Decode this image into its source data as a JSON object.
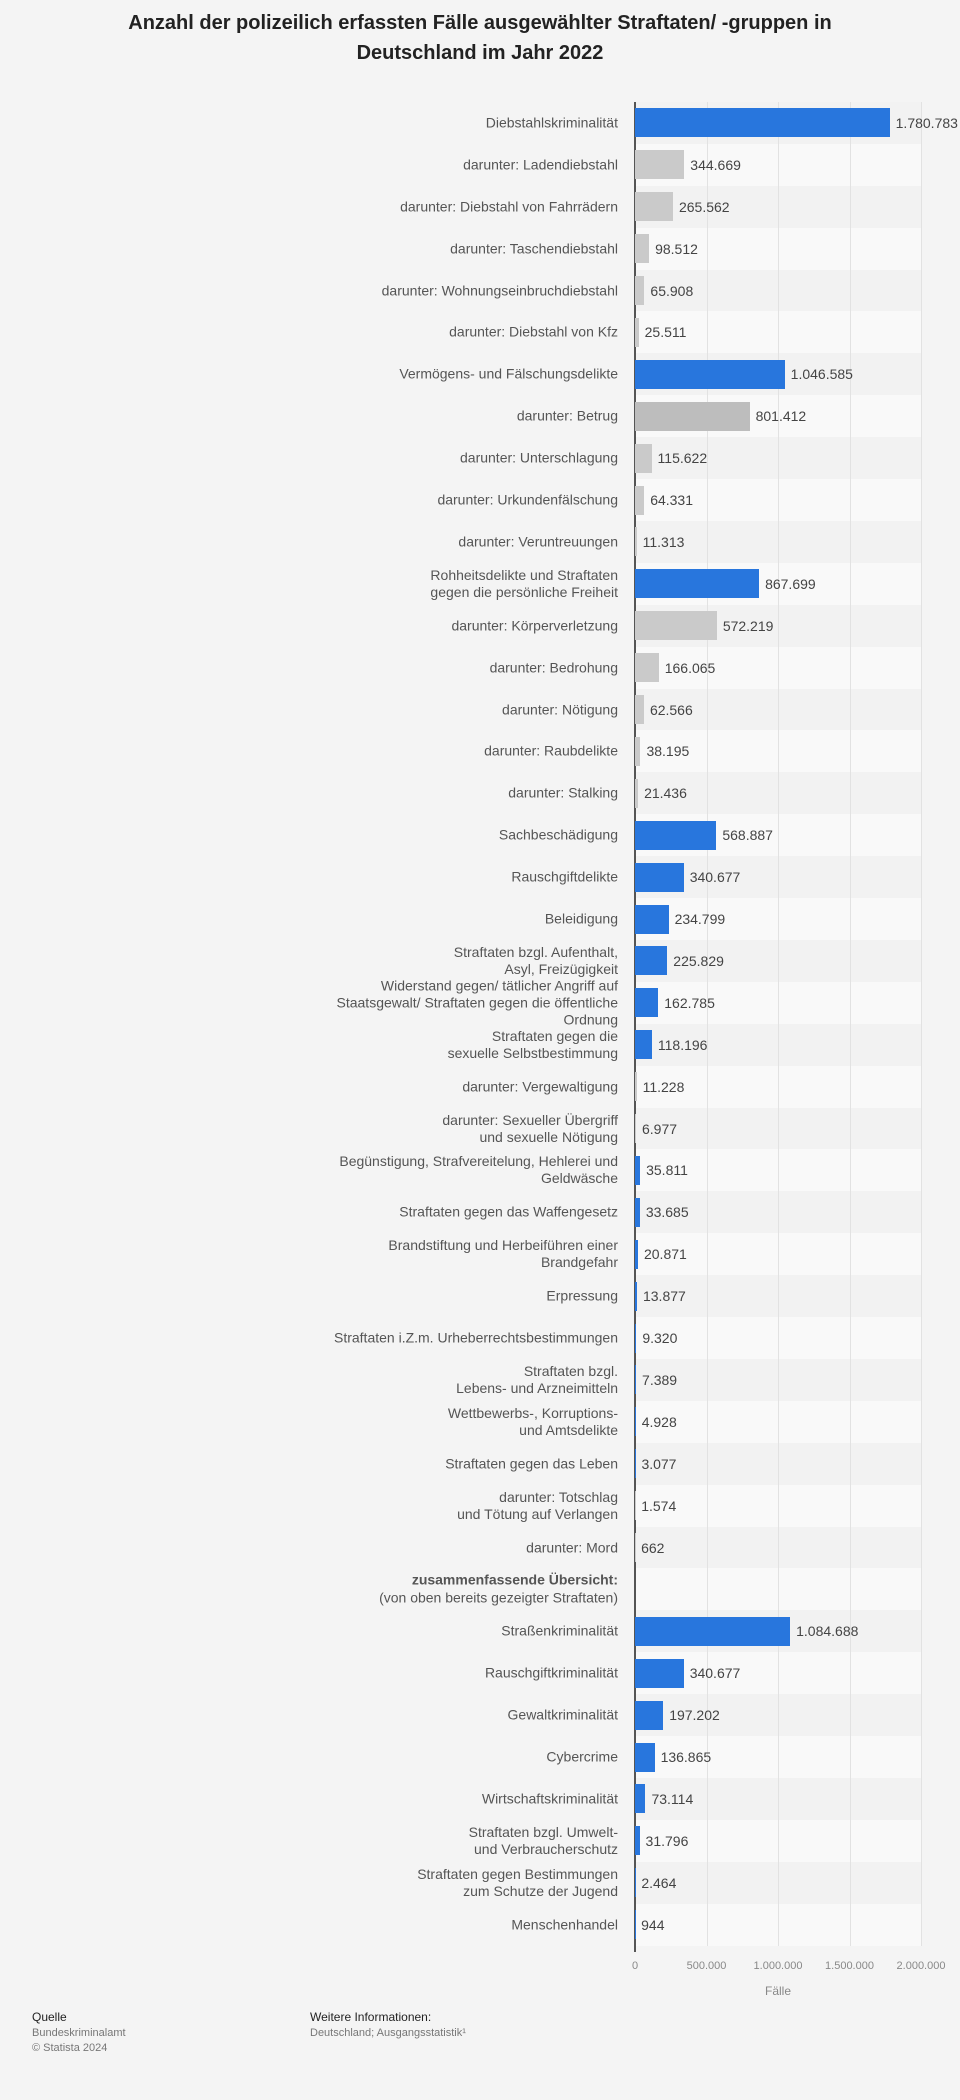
{
  "chart_data": {
    "type": "hbar",
    "title": "Anzahl der polizeilich erfassten Fälle ausgewählter Straftaten/ -gruppen in Deutschland im Jahr 2022",
    "x_label": "Fälle",
    "categories": [
      "Diebstahlskriminalität",
      "darunter: Ladendiebstahl",
      "darunter: Diebstahl von Fahrrädern",
      "darunter: Taschendiebstahl",
      "darunter: Wohnungseinbruchdiebstahl",
      "darunter: Diebstahl von Kfz",
      "Vermögens- und Fälschungsdelikte",
      "darunter: Betrug",
      "darunter: Unterschlagung",
      "darunter: Urkundenfälschung",
      "darunter: Veruntreuungen",
      "Rohheitsdelikte und Straftaten\ngegen die persönliche Freiheit",
      "darunter: Körperverletzung",
      "darunter: Bedrohung",
      "darunter: Nötigung",
      "darunter: Raubdelikte",
      "darunter: Stalking",
      "Sachbeschädigung",
      "Rauschgiftdelikte",
      "Beleidigung",
      "Straftaten bzgl. Aufenthalt,\nAsyl, Freizügigkeit",
      "Widerstand gegen/ tätlicher Angriff auf\nStaatsgewalt/ Straftaten gegen die öffentliche\nOrdnung",
      "Straftaten gegen die\nsexuelle Selbstbestimmung",
      "darunter: Vergewaltigung",
      "darunter: Sexueller Übergriff\nund sexuelle Nötigung",
      "Begünstigung, Strafvereitelung, Hehlerei und\nGeldwäsche",
      "Straftaten gegen das Waffengesetz",
      "Brandstiftung und Herbeiführen einer\nBrandgefahr",
      "Erpressung",
      "Straftaten i.Z.m. Urheberrechtsbestimmungen",
      "Straftaten bzgl.\nLebens- und Arzneimitteln",
      "Wettbewerbs-, Korruptions-\nund Amtsdelikte",
      "Straftaten gegen das Leben",
      "darunter: Totschlag\nund Tötung auf Verlangen",
      "darunter: Mord",
      null,
      "Straßenkriminalität",
      "Rauschgiftkriminalität",
      "Gewaltkriminalität",
      "Cybercrime",
      "Wirtschaftskriminalität",
      "Straftaten bzgl. Umwelt-\nund Verbraucherschutz",
      "Straftaten gegen Bestimmungen\nzum Schutze der Jugend",
      "Menschenhandel"
    ],
    "values": [
      1780783,
      344669,
      265562,
      98512,
      65908,
      25511,
      1046585,
      801412,
      115622,
      64331,
      11313,
      867699,
      572219,
      166065,
      62566,
      38195,
      21436,
      568887,
      340677,
      234799,
      225829,
      162785,
      118196,
      11228,
      6977,
      35811,
      33685,
      20871,
      13877,
      9320,
      7389,
      4928,
      3077,
      1574,
      662,
      null,
      1084688,
      340677,
      197202,
      136865,
      73114,
      31796,
      2464,
      944
    ],
    "value_labels": [
      "1.780.783",
      "344.669",
      "265.562",
      "98.512",
      "65.908",
      "25.511",
      "1.046.585",
      "801.412",
      "115.622",
      "64.331",
      "11.313",
      "867.699",
      "572.219",
      "166.065",
      "62.566",
      "38.195",
      "21.436",
      "568.887",
      "340.677",
      "234.799",
      "225.829",
      "162.785",
      "118.196",
      "11.228",
      "6.977",
      "35.811",
      "33.685",
      "20.871",
      "13.877",
      "9.320",
      "7.389",
      "4.928",
      "3.077",
      "1.574",
      "662",
      null,
      "1.084.688",
      "340.677",
      "197.202",
      "136.865",
      "73.114",
      "31.796",
      "2.464",
      "944"
    ],
    "colors": [
      "#2876dd",
      "#cacaca",
      "#cacaca",
      "#cacaca",
      "#cacaca",
      "#cacaca",
      "#2876dd",
      "#bdbdbd",
      "#cacaca",
      "#cacaca",
      "#cacaca",
      "#2876dd",
      "#cacaca",
      "#cacaca",
      "#cacaca",
      "#cacaca",
      "#cacaca",
      "#2876dd",
      "#2876dd",
      "#2876dd",
      "#2876dd",
      "#2876dd",
      "#2876dd",
      "#cacaca",
      "#cacaca",
      "#2876dd",
      "#2876dd",
      "#2876dd",
      "#2876dd",
      "#2876dd",
      "#2876dd",
      "#2876dd",
      "#2876dd",
      "#cacaca",
      "#cacaca",
      null,
      "#2876dd",
      "#2876dd",
      "#2876dd",
      "#2876dd",
      "#2876dd",
      "#2876dd",
      "#2876dd",
      "#2876dd"
    ],
    "section": {
      "title": "zusammenfassende Übersicht:",
      "note": "(von oben bereits gezeigter Straftaten)",
      "row": 35
    },
    "xlim": [
      0,
      2000000
    ],
    "xticks": [
      0,
      {
        "value": 500000,
        "label": "500.000"
      },
      {
        "value": 1000000,
        "label": "1.000.000"
      },
      {
        "value": 1500000,
        "label": "1.500.000"
      },
      {
        "value": 2000000,
        "label": "2.000.000"
      }
    ],
    "grid": true
  },
  "footer": {
    "source_heading": "Quelle",
    "source": "Bundeskriminalamt",
    "copyright": "© Statista 2024",
    "info_heading": "Weitere Informationen:",
    "info": "Deutschland; Ausgangsstatistik¹"
  }
}
